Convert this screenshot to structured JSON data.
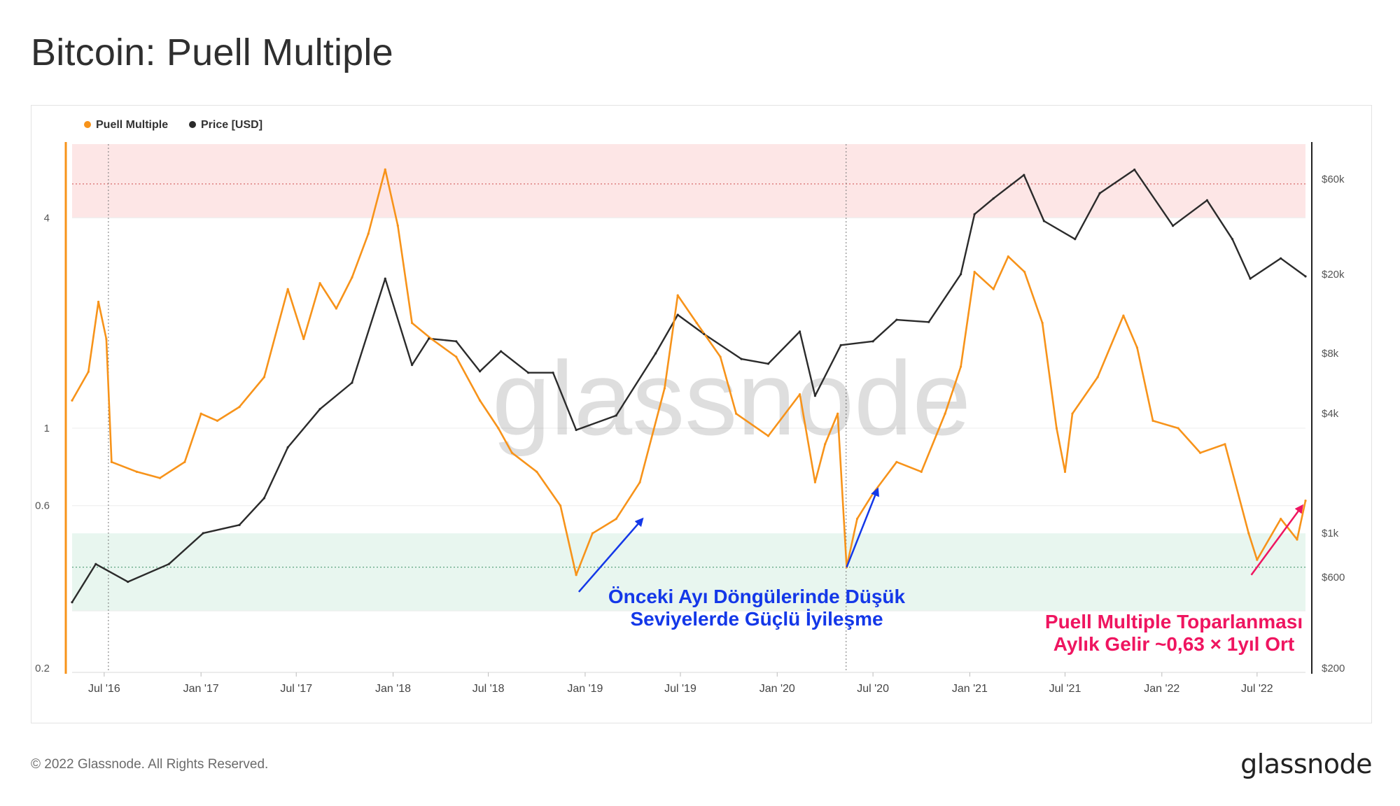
{
  "title": "Bitcoin: Puell Multiple",
  "footer": {
    "copyright": "© 2022 Glassnode. All Rights Reserved.",
    "logo": "glassnode"
  },
  "watermark": "glassnode",
  "colors": {
    "puell": "#f7931a",
    "price": "#2b2b2b",
    "red_band": "#fde6e6",
    "green_band": "#e8f6ef",
    "annotation_blue": "#1438e8",
    "annotation_pink": "#ef1560"
  },
  "chart_data": {
    "type": "line",
    "legend": [
      {
        "name": "Puell Multiple",
        "color": "#f7931a"
      },
      {
        "name": "Price [USD]",
        "color": "#2b2b2b"
      }
    ],
    "legend_position": "top-left",
    "x": {
      "range": [
        "2016-05-01",
        "2022-10-01"
      ],
      "ticks": [
        "Jul '16",
        "Jan '17",
        "Jul '17",
        "Jan '18",
        "Jul '18",
        "Jan '19",
        "Jul '19",
        "Jan '20",
        "Jul '20",
        "Jan '21",
        "Jul '21",
        "Jan '22",
        "Jul '22"
      ],
      "tick_dates": [
        "2016-07-01",
        "2017-01-01",
        "2017-07-01",
        "2018-01-01",
        "2018-07-01",
        "2019-01-01",
        "2019-07-01",
        "2020-01-01",
        "2020-07-01",
        "2021-01-01",
        "2021-07-01",
        "2022-01-01",
        "2022-07-01"
      ]
    },
    "y_left": {
      "scale": "log",
      "range": [
        0.2,
        6.5
      ],
      "ticks": [
        "4",
        "1",
        "0.6",
        "0.2"
      ],
      "tick_values": [
        4,
        1,
        0.6,
        0.2
      ]
    },
    "y_right": {
      "scale": "log",
      "range": [
        200,
        90000
      ],
      "ticks": [
        "$60k",
        "$20k",
        "$8k",
        "$4k",
        "$1k",
        "$600",
        "$200"
      ],
      "tick_values": [
        60000,
        20000,
        8000,
        4000,
        1000,
        600,
        200
      ]
    },
    "bands": [
      {
        "axis": "left",
        "from": 4,
        "to": 6.5,
        "color": "#fde6e6"
      },
      {
        "axis": "left",
        "from": 0.3,
        "to": 0.5,
        "color": "#e8f6ef"
      }
    ],
    "reference_lines": [
      {
        "axis": "left",
        "value": 5.0
      },
      {
        "axis": "left",
        "value": 0.4
      }
    ],
    "event_lines": [
      "2016-07-09",
      "2020-05-11"
    ],
    "series": [
      {
        "name": "Puell Multiple",
        "axis": "left",
        "points": [
          [
            "2016-05-01",
            1.2
          ],
          [
            "2016-06-01",
            1.45
          ],
          [
            "2016-06-20",
            2.3
          ],
          [
            "2016-07-05",
            1.8
          ],
          [
            "2016-07-15",
            0.8
          ],
          [
            "2016-09-01",
            0.75
          ],
          [
            "2016-10-15",
            0.72
          ],
          [
            "2016-12-01",
            0.8
          ],
          [
            "2017-01-01",
            1.1
          ],
          [
            "2017-02-01",
            1.05
          ],
          [
            "2017-03-15",
            1.15
          ],
          [
            "2017-05-01",
            1.4
          ],
          [
            "2017-06-15",
            2.5
          ],
          [
            "2017-07-15",
            1.8
          ],
          [
            "2017-08-15",
            2.6
          ],
          [
            "2017-09-15",
            2.2
          ],
          [
            "2017-10-15",
            2.7
          ],
          [
            "2017-11-15",
            3.6
          ],
          [
            "2017-12-17",
            5.5
          ],
          [
            "2018-01-10",
            3.8
          ],
          [
            "2018-02-06",
            2.0
          ],
          [
            "2018-03-15",
            1.8
          ],
          [
            "2018-05-01",
            1.6
          ],
          [
            "2018-06-15",
            1.2
          ],
          [
            "2018-07-20",
            1.0
          ],
          [
            "2018-08-15",
            0.85
          ],
          [
            "2018-10-01",
            0.75
          ],
          [
            "2018-11-15",
            0.6
          ],
          [
            "2018-12-15",
            0.38
          ],
          [
            "2019-01-15",
            0.5
          ],
          [
            "2019-03-01",
            0.55
          ],
          [
            "2019-04-15",
            0.7
          ],
          [
            "2019-06-01",
            1.3
          ],
          [
            "2019-06-26",
            2.4
          ],
          [
            "2019-08-01",
            2.0
          ],
          [
            "2019-09-15",
            1.6
          ],
          [
            "2019-10-15",
            1.1
          ],
          [
            "2019-12-15",
            0.95
          ],
          [
            "2020-02-13",
            1.25
          ],
          [
            "2020-03-13",
            0.7
          ],
          [
            "2020-04-01",
            0.9
          ],
          [
            "2020-04-25",
            1.1
          ],
          [
            "2020-05-12",
            0.4
          ],
          [
            "2020-06-01",
            0.55
          ],
          [
            "2020-07-01",
            0.65
          ],
          [
            "2020-08-15",
            0.8
          ],
          [
            "2020-10-01",
            0.75
          ],
          [
            "2020-11-15",
            1.1
          ],
          [
            "2020-12-15",
            1.5
          ],
          [
            "2021-01-10",
            2.8
          ],
          [
            "2021-02-15",
            2.5
          ],
          [
            "2021-03-15",
            3.1
          ],
          [
            "2021-04-15",
            2.8
          ],
          [
            "2021-05-19",
            2.0
          ],
          [
            "2021-06-15",
            1.0
          ],
          [
            "2021-07-01",
            0.75
          ],
          [
            "2021-07-15",
            1.1
          ],
          [
            "2021-09-01",
            1.4
          ],
          [
            "2021-10-20",
            2.1
          ],
          [
            "2021-11-15",
            1.7
          ],
          [
            "2021-12-15",
            1.05
          ],
          [
            "2022-02-01",
            1.0
          ],
          [
            "2022-03-15",
            0.85
          ],
          [
            "2022-05-01",
            0.9
          ],
          [
            "2022-06-15",
            0.5
          ],
          [
            "2022-07-01",
            0.42
          ],
          [
            "2022-08-15",
            0.55
          ],
          [
            "2022-09-15",
            0.48
          ],
          [
            "2022-10-01",
            0.62
          ]
        ]
      },
      {
        "name": "Price [USD]",
        "axis": "right",
        "points": [
          [
            "2016-05-01",
            450
          ],
          [
            "2016-06-15",
            700
          ],
          [
            "2016-08-15",
            570
          ],
          [
            "2016-11-01",
            700
          ],
          [
            "2017-01-05",
            1000
          ],
          [
            "2017-03-15",
            1100
          ],
          [
            "2017-05-01",
            1500
          ],
          [
            "2017-06-15",
            2700
          ],
          [
            "2017-08-15",
            4200
          ],
          [
            "2017-10-15",
            5700
          ],
          [
            "2017-12-17",
            19000
          ],
          [
            "2018-02-06",
            7000
          ],
          [
            "2018-03-10",
            9500
          ],
          [
            "2018-05-01",
            9200
          ],
          [
            "2018-06-15",
            6500
          ],
          [
            "2018-07-25",
            8200
          ],
          [
            "2018-09-15",
            6400
          ],
          [
            "2018-11-01",
            6400
          ],
          [
            "2018-12-15",
            3300
          ],
          [
            "2019-03-01",
            3900
          ],
          [
            "2019-05-15",
            8000
          ],
          [
            "2019-06-26",
            12500
          ],
          [
            "2019-08-15",
            10000
          ],
          [
            "2019-10-25",
            7500
          ],
          [
            "2019-12-15",
            7100
          ],
          [
            "2020-02-13",
            10300
          ],
          [
            "2020-03-13",
            4900
          ],
          [
            "2020-05-01",
            8800
          ],
          [
            "2020-07-01",
            9200
          ],
          [
            "2020-08-15",
            11800
          ],
          [
            "2020-10-15",
            11500
          ],
          [
            "2020-12-15",
            20000
          ],
          [
            "2021-01-10",
            40000
          ],
          [
            "2021-02-15",
            48000
          ],
          [
            "2021-04-14",
            63000
          ],
          [
            "2021-05-22",
            37000
          ],
          [
            "2021-07-20",
            30000
          ],
          [
            "2021-09-05",
            51000
          ],
          [
            "2021-11-10",
            67000
          ],
          [
            "2022-01-22",
            35000
          ],
          [
            "2022-03-28",
            47000
          ],
          [
            "2022-05-15",
            30000
          ],
          [
            "2022-06-18",
            19000
          ],
          [
            "2022-08-15",
            24000
          ],
          [
            "2022-10-01",
            19500
          ]
        ]
      }
    ],
    "annotations": [
      {
        "lines": [
          "Önceki Ayı Döngülerinde Düşük",
          "Seviyelerde Güçlü İyileşme"
        ],
        "color": "#1438e8"
      },
      {
        "lines": [
          "Puell Multiple Toparlanması",
          "Aylık Gelir ~0,63 × 1yıl Ort"
        ],
        "color": "#ef1560"
      }
    ],
    "arrows": [
      {
        "from": [
          "2018-12-20",
          0.34
        ],
        "to": [
          "2019-04-20",
          0.55
        ],
        "color": "#1438e8"
      },
      {
        "from": [
          "2020-05-12",
          0.4
        ],
        "to": [
          "2020-07-10",
          0.67
        ],
        "color": "#1438e8"
      },
      {
        "from": [
          "2022-06-20",
          0.38
        ],
        "to": [
          "2022-09-25",
          0.6
        ],
        "color": "#ef1560"
      }
    ]
  }
}
